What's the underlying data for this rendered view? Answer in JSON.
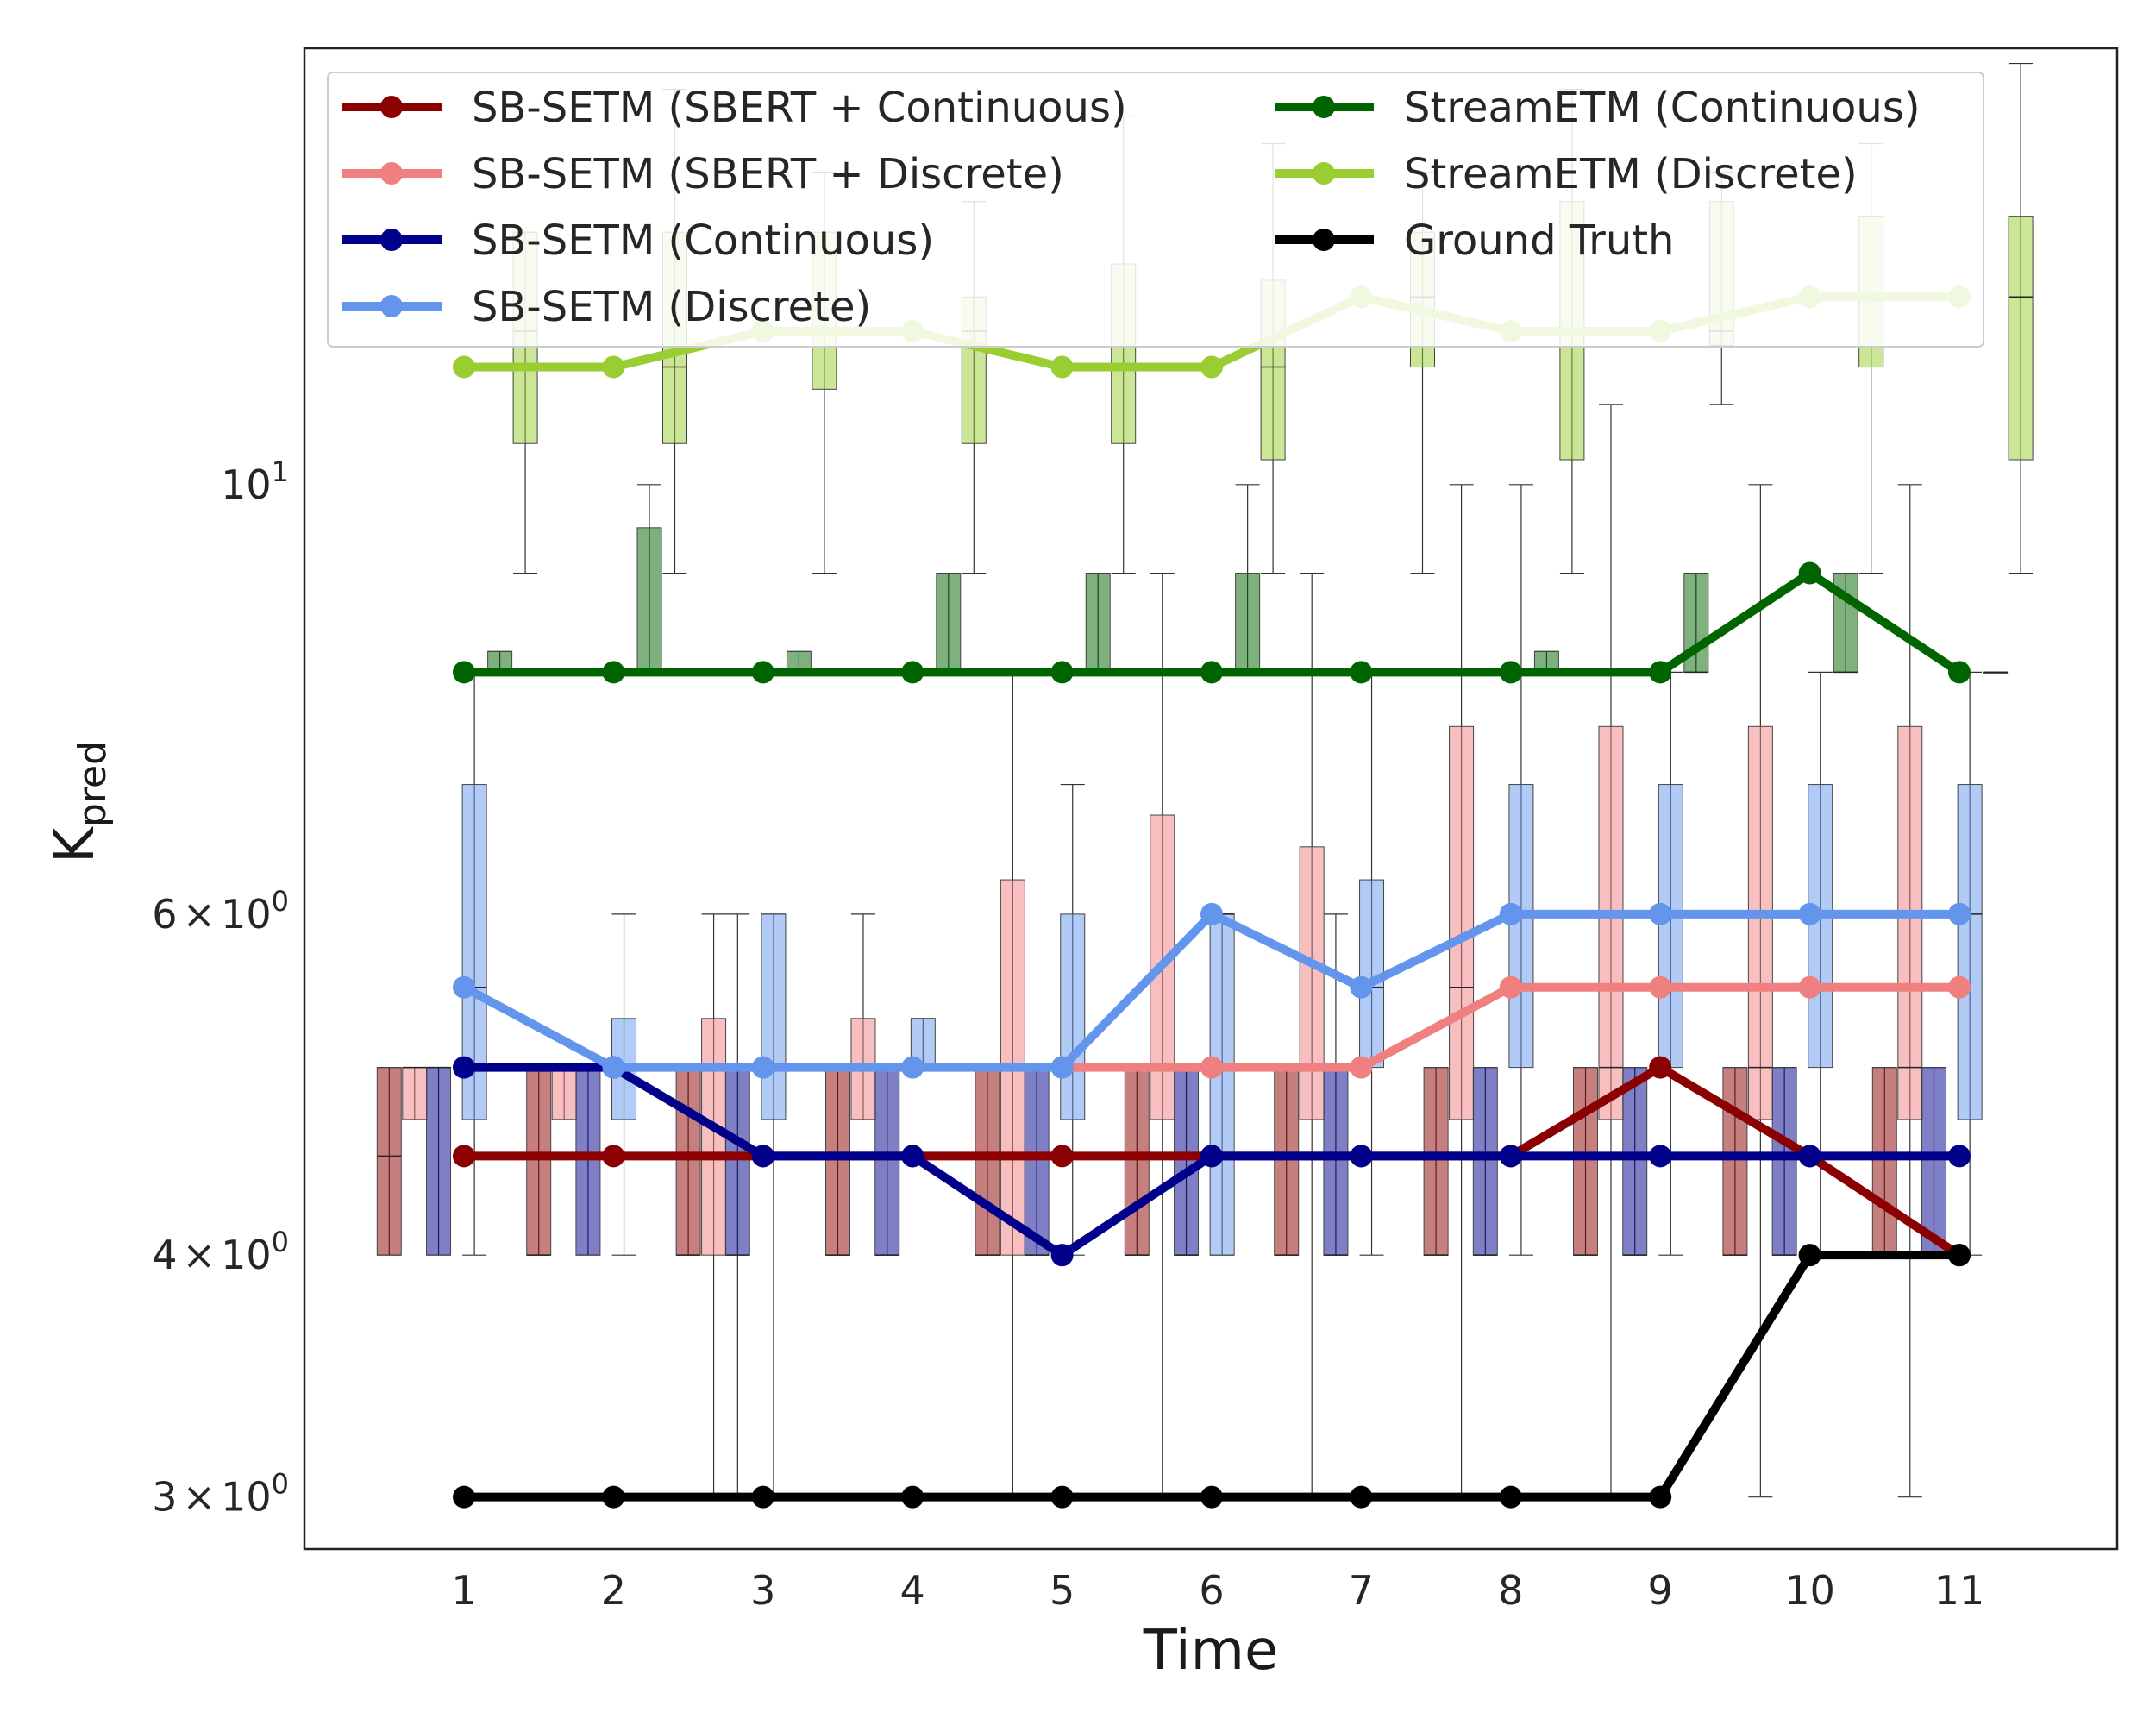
{
  "chart_data": {
    "type": "line",
    "xlabel": "Time",
    "ylabel": "K",
    "ylabel_subscript": "pred",
    "y_scale": "log",
    "ylim": [
      2.82,
      16.8
    ],
    "x_ticks": [
      1,
      2,
      3,
      4,
      5,
      6,
      7,
      8,
      9,
      10,
      11
    ],
    "y_ticks": [
      {
        "value": 3,
        "mantissa": "3",
        "sep": "×",
        "base": "10",
        "exp": "0"
      },
      {
        "value": 4,
        "mantissa": "4",
        "sep": "×",
        "base": "10",
        "exp": "0"
      },
      {
        "value": 6,
        "mantissa": "6",
        "sep": "×",
        "base": "10",
        "exp": "0"
      },
      {
        "value": 10,
        "mantissa": "",
        "sep": "",
        "base": "10",
        "exp": "1"
      }
    ],
    "legend_position": "top",
    "series": [
      {
        "name": "SB-SETM (SBERT + Continuous)",
        "color": "#8b0000",
        "x": [
          1,
          2,
          3,
          4,
          5,
          6,
          7,
          8,
          9,
          10,
          11
        ],
        "y": [
          4.5,
          4.5,
          4.5,
          4.5,
          4.5,
          4.5,
          4.5,
          4.5,
          5,
          4.5,
          4
        ]
      },
      {
        "name": "SB-SETM (SBERT + Discrete)",
        "color": "#f08080",
        "x": [
          5,
          6,
          7,
          8,
          9,
          10,
          11
        ],
        "y": [
          5,
          5,
          5,
          5.5,
          5.5,
          5.5,
          5.5
        ]
      },
      {
        "name": "SB-SETM (Continuous)",
        "color": "#00008b",
        "x": [
          1,
          2,
          3,
          4,
          5,
          6,
          7,
          8,
          9,
          10,
          11
        ],
        "y": [
          5,
          5,
          4.5,
          4.5,
          4,
          4.5,
          4.5,
          4.5,
          4.5,
          4.5,
          4.5
        ]
      },
      {
        "name": "SB-SETM (Discrete)",
        "color": "#6495ed",
        "x": [
          1,
          2,
          3,
          4,
          5,
          6,
          7,
          8,
          9,
          10,
          11
        ],
        "y": [
          5.5,
          5,
          5,
          5,
          5,
          6,
          5.5,
          6,
          6,
          6,
          6
        ]
      },
      {
        "name": "StreamETM (Continuous)",
        "color": "#006400",
        "x": [
          1,
          2,
          3,
          4,
          5,
          6,
          7,
          8,
          9,
          10,
          11
        ],
        "y": [
          8,
          8,
          8,
          8,
          8,
          8,
          8,
          8,
          8,
          9,
          8
        ]
      },
      {
        "name": "StreamETM (Discrete)",
        "color": "#9acd32",
        "x": [
          1,
          2,
          3,
          4,
          5,
          6,
          7,
          8,
          9,
          10,
          11
        ],
        "y": [
          11.5,
          11.5,
          12,
          12,
          11.5,
          11.5,
          12.5,
          12,
          12,
          12.5,
          12.5
        ]
      },
      {
        "name": "Ground Truth",
        "color": "#000000",
        "x": [
          1,
          2,
          3,
          4,
          5,
          6,
          7,
          8,
          9,
          10,
          11
        ],
        "y": [
          3,
          3,
          3,
          3,
          3,
          3,
          3,
          3,
          3,
          4,
          4
        ]
      }
    ],
    "boxplots": [
      {
        "series": "SB-SETM (SBERT + Continuous)",
        "color": "#8b0000",
        "offset": -0.5,
        "boxes": [
          {
            "t": 1,
            "whislo": 4,
            "q1": 4,
            "med": 4.5,
            "q3": 5,
            "whishi": 5
          },
          {
            "t": 2,
            "whislo": 4,
            "q1": 4,
            "med": 4,
            "q3": 5,
            "whishi": 5
          },
          {
            "t": 3,
            "whislo": 4,
            "q1": 4,
            "med": 4,
            "q3": 5,
            "whishi": 5
          },
          {
            "t": 4,
            "whislo": 4,
            "q1": 4,
            "med": 4,
            "q3": 5,
            "whishi": 5
          },
          {
            "t": 5,
            "whislo": 4,
            "q1": 4,
            "med": 4,
            "q3": 5,
            "whishi": 5
          },
          {
            "t": 6,
            "whislo": 4,
            "q1": 4,
            "med": 4,
            "q3": 5,
            "whishi": 5
          },
          {
            "t": 7,
            "whislo": 4,
            "q1": 4,
            "med": 4,
            "q3": 5,
            "whishi": 5
          },
          {
            "t": 8,
            "whislo": 4,
            "q1": 4,
            "med": 4,
            "q3": 5,
            "whishi": 5
          },
          {
            "t": 9,
            "whislo": 4,
            "q1": 4,
            "med": 4,
            "q3": 5,
            "whishi": 5
          },
          {
            "t": 10,
            "whislo": 4,
            "q1": 4,
            "med": 4,
            "q3": 5,
            "whishi": 5
          },
          {
            "t": 11,
            "whislo": 4,
            "q1": 4,
            "med": 4,
            "q3": 5,
            "whishi": 5
          }
        ]
      },
      {
        "series": "SB-SETM (SBERT + Discrete)",
        "color": "#f08080",
        "offset": -0.33,
        "boxes": [
          {
            "t": 1,
            "whislo": 4.7,
            "q1": 4.7,
            "med": 5,
            "q3": 5,
            "whishi": 5
          },
          {
            "t": 2,
            "whislo": 4.7,
            "q1": 4.7,
            "med": 5,
            "q3": 5,
            "whishi": 5
          },
          {
            "t": 3,
            "whislo": 3,
            "q1": 4,
            "med": 5,
            "q3": 5.3,
            "whishi": 6
          },
          {
            "t": 4,
            "whislo": 4.7,
            "q1": 4.7,
            "med": 5,
            "q3": 5.3,
            "whishi": 6
          },
          {
            "t": 5,
            "whislo": 3,
            "q1": 4,
            "med": 5,
            "q3": 6.25,
            "whishi": 8
          },
          {
            "t": 6,
            "whislo": 3,
            "q1": 4.7,
            "med": 5,
            "q3": 6.75,
            "whishi": 9
          },
          {
            "t": 7,
            "whislo": 3,
            "q1": 4.7,
            "med": 5,
            "q3": 6.5,
            "whishi": 9
          },
          {
            "t": 8,
            "whislo": 3,
            "q1": 4.7,
            "med": 5.5,
            "q3": 7.5,
            "whishi": 10
          },
          {
            "t": 9,
            "whislo": 3,
            "q1": 4.7,
            "med": 5,
            "q3": 7.5,
            "whishi": 11
          },
          {
            "t": 10,
            "whislo": 3,
            "q1": 4.7,
            "med": 5,
            "q3": 7.5,
            "whishi": 10
          },
          {
            "t": 11,
            "whislo": 3,
            "q1": 4.7,
            "med": 5,
            "q3": 7.5,
            "whishi": 10
          }
        ]
      },
      {
        "series": "SB-SETM (Continuous)",
        "color": "#00008b",
        "offset": -0.17,
        "boxes": [
          {
            "t": 1,
            "whislo": 4,
            "q1": 4,
            "med": 5,
            "q3": 5,
            "whishi": 5
          },
          {
            "t": 2,
            "whislo": 4,
            "q1": 4,
            "med": 5,
            "q3": 5,
            "whishi": 5
          },
          {
            "t": 3,
            "whislo": 3,
            "q1": 4,
            "med": 4,
            "q3": 5,
            "whishi": 6
          },
          {
            "t": 4,
            "whislo": 4,
            "q1": 4,
            "med": 4,
            "q3": 5,
            "whishi": 5
          },
          {
            "t": 5,
            "whislo": 4,
            "q1": 4,
            "med": 4,
            "q3": 5,
            "whishi": 5
          },
          {
            "t": 6,
            "whislo": 4,
            "q1": 4,
            "med": 4,
            "q3": 5,
            "whishi": 5
          },
          {
            "t": 7,
            "whislo": 4,
            "q1": 4,
            "med": 4,
            "q3": 5,
            "whishi": 6
          },
          {
            "t": 8,
            "whislo": 4,
            "q1": 4,
            "med": 4,
            "q3": 5,
            "whishi": 5
          },
          {
            "t": 9,
            "whislo": 4,
            "q1": 4,
            "med": 4,
            "q3": 5,
            "whishi": 5
          },
          {
            "t": 10,
            "whislo": 4,
            "q1": 4,
            "med": 4,
            "q3": 5,
            "whishi": 5
          },
          {
            "t": 11,
            "whislo": 4,
            "q1": 4,
            "med": 4,
            "q3": 5,
            "whishi": 5
          }
        ]
      },
      {
        "series": "SB-SETM (Discrete)",
        "color": "#6495ed",
        "offset": 0.07,
        "boxes": [
          {
            "t": 1,
            "whislo": 4,
            "q1": 4.7,
            "med": 5.5,
            "q3": 7,
            "whishi": 8
          },
          {
            "t": 2,
            "whislo": 4,
            "q1": 4.7,
            "med": 5,
            "q3": 5.3,
            "whishi": 6
          },
          {
            "t": 3,
            "whislo": 3,
            "q1": 4.7,
            "med": 5,
            "q3": 6,
            "whishi": 6
          },
          {
            "t": 4,
            "whislo": 5,
            "q1": 5,
            "med": 5,
            "q3": 5.3,
            "whishi": 5.3
          },
          {
            "t": 5,
            "whislo": 4,
            "q1": 4.7,
            "med": 5,
            "q3": 6,
            "whishi": 7
          },
          {
            "t": 6,
            "whislo": 4,
            "q1": 4,
            "med": 6,
            "q3": 6,
            "whishi": 6
          },
          {
            "t": 7,
            "whislo": 4,
            "q1": 5,
            "med": 5.5,
            "q3": 6.25,
            "whishi": 8
          },
          {
            "t": 8,
            "whislo": 4,
            "q1": 5,
            "med": 6,
            "q3": 7,
            "whishi": 10
          },
          {
            "t": 9,
            "whislo": 4,
            "q1": 5,
            "med": 6,
            "q3": 7,
            "whishi": 8
          },
          {
            "t": 10,
            "whislo": 4,
            "q1": 5,
            "med": 6,
            "q3": 7,
            "whishi": 8
          },
          {
            "t": 11,
            "whislo": 4,
            "q1": 4.7,
            "med": 6,
            "q3": 7,
            "whishi": 8
          }
        ]
      },
      {
        "series": "StreamETM (Continuous)",
        "color": "#006400",
        "offset": 0.24,
        "boxes": [
          {
            "t": 1,
            "whislo": 8,
            "q1": 8,
            "med": 8,
            "q3": 8.2,
            "whishi": 8.2
          },
          {
            "t": 2,
            "whislo": 8,
            "q1": 8,
            "med": 8,
            "q3": 9.5,
            "whishi": 10
          },
          {
            "t": 3,
            "whislo": 8,
            "q1": 8,
            "med": 8,
            "q3": 8.2,
            "whishi": 8.2
          },
          {
            "t": 4,
            "whislo": 8,
            "q1": 8,
            "med": 8,
            "q3": 9,
            "whishi": 9
          },
          {
            "t": 5,
            "whislo": 8,
            "q1": 8,
            "med": 8,
            "q3": 9,
            "whishi": 9
          },
          {
            "t": 6,
            "whislo": 8,
            "q1": 8,
            "med": 8,
            "q3": 9,
            "whishi": 10
          },
          {
            "t": 7,
            "whislo": 8,
            "q1": 8,
            "med": 8,
            "q3": 8,
            "whishi": 8
          },
          {
            "t": 8,
            "whislo": 8,
            "q1": 8,
            "med": 8,
            "q3": 8.2,
            "whishi": 8.2
          },
          {
            "t": 9,
            "whislo": 8,
            "q1": 8,
            "med": 8,
            "q3": 9,
            "whishi": 9
          },
          {
            "t": 10,
            "whislo": 8,
            "q1": 8,
            "med": 8,
            "q3": 9,
            "whishi": 9
          },
          {
            "t": 11,
            "whislo": 8,
            "q1": 8,
            "med": 8,
            "q3": 8,
            "whishi": 8
          }
        ]
      },
      {
        "series": "StreamETM (Discrete)",
        "color": "#9acd32",
        "offset": 0.41,
        "boxes": [
          {
            "t": 1,
            "whislo": 9,
            "q1": 10.5,
            "med": 12,
            "q3": 13.5,
            "whishi": 13.5
          },
          {
            "t": 2,
            "whislo": 9,
            "q1": 10.5,
            "med": 11.5,
            "q3": 13.5,
            "whishi": 16
          },
          {
            "t": 3,
            "whislo": 9,
            "q1": 11.2,
            "med": 12,
            "q3": 13.5,
            "whishi": 14.5
          },
          {
            "t": 4,
            "whislo": 9,
            "q1": 10.5,
            "med": 12,
            "q3": 12.5,
            "whishi": 14
          },
          {
            "t": 5,
            "whislo": 9,
            "q1": 10.5,
            "med": 11.5,
            "q3": 13,
            "whishi": 15.5
          },
          {
            "t": 6,
            "whislo": 9,
            "q1": 10.3,
            "med": 11.5,
            "q3": 12.75,
            "whishi": 15
          },
          {
            "t": 7,
            "whislo": 9,
            "q1": 11.5,
            "med": 12.5,
            "q3": 13.5,
            "whishi": 14.5
          },
          {
            "t": 8,
            "whislo": 9,
            "q1": 10.3,
            "med": 12,
            "q3": 14,
            "whishi": 16
          },
          {
            "t": 9,
            "whislo": 11,
            "q1": 11.8,
            "med": 12,
            "q3": 14,
            "whishi": 14.5
          },
          {
            "t": 10,
            "whislo": 9,
            "q1": 11.5,
            "med": 12.5,
            "q3": 13.75,
            "whishi": 15
          },
          {
            "t": 11,
            "whislo": 9,
            "q1": 10.3,
            "med": 12.5,
            "q3": 13.75,
            "whishi": 16.5
          }
        ]
      }
    ]
  }
}
